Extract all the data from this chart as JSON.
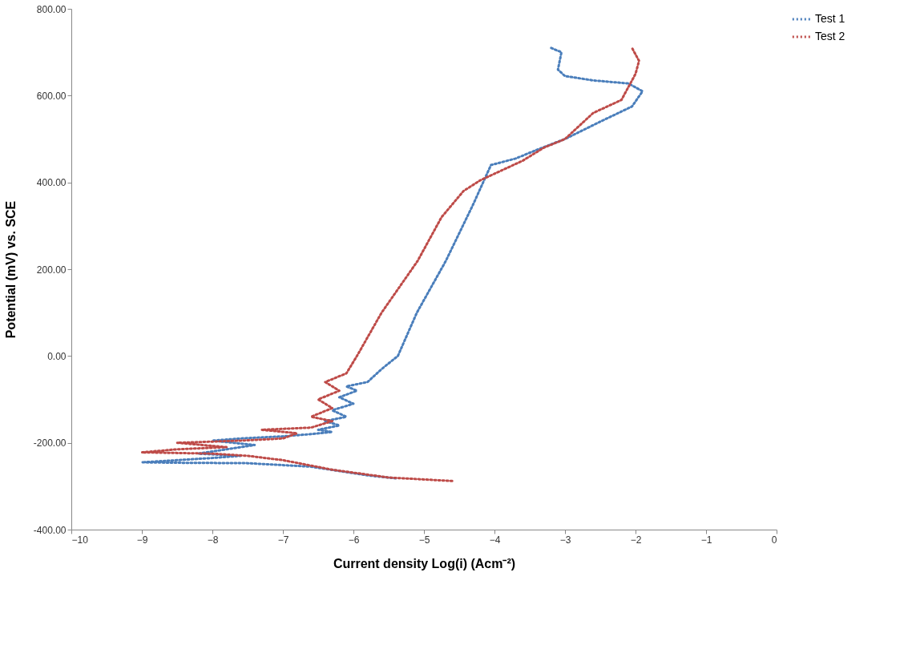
{
  "chart_data": {
    "type": "line",
    "xlabel": "Current density Log(i) (Acm⁻²)",
    "ylabel": "Potential (mV) vs. SCE",
    "xlim": [
      -10,
      0
    ],
    "xticks": [
      -10,
      -9,
      -8,
      -7,
      -6,
      -5,
      -4,
      -3,
      -2,
      -1,
      0
    ],
    "ylim": [
      -400,
      800
    ],
    "yticks": [
      {
        "value": -400,
        "label": "-400.00"
      },
      {
        "value": -200,
        "label": "-200.00"
      },
      {
        "value": 0,
        "label": "0.00"
      },
      {
        "value": 200,
        "label": "200.00"
      },
      {
        "value": 400,
        "label": "400.00"
      },
      {
        "value": 600,
        "label": "600.00"
      },
      {
        "value": 800,
        "label": "800.00"
      }
    ],
    "grid": false,
    "legend": "right",
    "line_style": "dotted",
    "marker": "none",
    "series": [
      {
        "name": "Test 1",
        "color": "#4a7ebb",
        "x": [
          -5.4,
          -5.8,
          -6.2,
          -6.6,
          -7.5,
          -8.5,
          -9.0,
          -8.5,
          -8.0,
          -7.6,
          -8.2,
          -7.8,
          -7.4,
          -8.0,
          -7.6,
          -7.0,
          -6.6,
          -6.3,
          -6.5,
          -6.2,
          -6.4,
          -6.1,
          -6.3,
          -6.0,
          -6.2,
          -5.95,
          -6.1,
          -5.8,
          -5.6,
          -5.37,
          -5.1,
          -4.69,
          -4.3,
          -4.05,
          -3.7,
          -3.4,
          -3.0,
          -2.5,
          -2.05,
          -1.9,
          -2.1,
          -2.6,
          -3.0,
          -3.1,
          -3.05,
          -3.2
        ],
        "values": [
          -282,
          -275,
          -265,
          -255,
          -247,
          -246,
          -245,
          -240,
          -235,
          -230,
          -225,
          -215,
          -205,
          -195,
          -190,
          -185,
          -180,
          -175,
          -170,
          -160,
          -150,
          -140,
          -125,
          -110,
          -95,
          -80,
          -70,
          -60,
          -30,
          0,
          100,
          219,
          350,
          440,
          455,
          475,
          500,
          540,
          575,
          610,
          628,
          635,
          645,
          660,
          700,
          710
        ]
      },
      {
        "name": "Test 2",
        "color": "#be4b48",
        "x": [
          -4.6,
          -5.5,
          -6.3,
          -7.0,
          -7.5,
          -8.0,
          -9.0,
          -8.5,
          -7.8,
          -8.5,
          -7.6,
          -7.0,
          -6.8,
          -7.3,
          -6.6,
          -6.3,
          -6.6,
          -6.3,
          -6.5,
          -6.2,
          -6.4,
          -6.1,
          -5.95,
          -5.6,
          -5.09,
          -4.75,
          -4.44,
          -4.2,
          -4.0,
          -3.6,
          -3.3,
          -3.0,
          -2.6,
          -2.2,
          -2.1,
          -2.0,
          -1.95,
          -2.05
        ],
        "values": [
          -288,
          -280,
          -262,
          -240,
          -230,
          -225,
          -222,
          -215,
          -210,
          -200,
          -195,
          -190,
          -178,
          -170,
          -165,
          -150,
          -140,
          -120,
          -100,
          -80,
          -60,
          -40,
          0,
          100,
          219,
          320,
          380,
          405,
          420,
          450,
          480,
          500,
          560,
          590,
          620,
          650,
          680,
          710
        ]
      }
    ]
  }
}
